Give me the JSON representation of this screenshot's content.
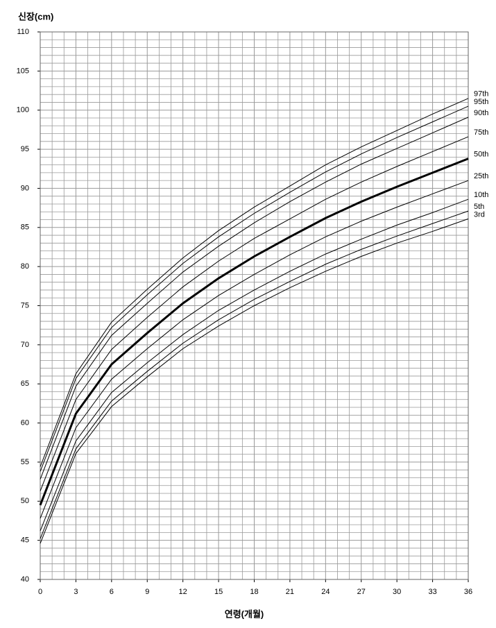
{
  "chart_data": {
    "type": "line",
    "title": "신장(cm)",
    "x_label": "연령(개월)",
    "x": [
      0,
      3,
      6,
      9,
      12,
      15,
      18,
      21,
      24,
      27,
      30,
      33,
      36
    ],
    "xlim": [
      0,
      36
    ],
    "xticks": [
      0,
      3,
      6,
      9,
      12,
      15,
      18,
      21,
      24,
      27,
      30,
      33,
      36
    ],
    "ylim": [
      40,
      110
    ],
    "yticks": [
      40,
      45,
      50,
      55,
      60,
      65,
      70,
      75,
      80,
      85,
      90,
      95,
      100,
      105,
      110
    ],
    "grid": true,
    "grid_color": "#999999",
    "series": [
      {
        "name": "97th",
        "color": "#000000",
        "linewidth": 1,
        "values": [
          54.4,
          66.3,
          72.9,
          77.1,
          81.1,
          84.6,
          87.6,
          90.3,
          93.0,
          95.3,
          97.4,
          99.5,
          101.5
        ]
      },
      {
        "name": "95th",
        "color": "#000000",
        "linewidth": 1,
        "values": [
          53.8,
          65.7,
          72.2,
          76.4,
          80.4,
          83.8,
          86.8,
          89.5,
          92.1,
          94.4,
          96.5,
          98.5,
          100.5
        ]
      },
      {
        "name": "90th",
        "color": "#000000",
        "linewidth": 1,
        "values": [
          52.8,
          64.7,
          71.2,
          75.3,
          79.3,
          82.6,
          85.6,
          88.3,
          90.8,
          93.1,
          95.1,
          97.1,
          99.1
        ]
      },
      {
        "name": "75th",
        "color": "#000000",
        "linewidth": 1,
        "values": [
          51.3,
          63.0,
          69.4,
          73.5,
          77.4,
          80.7,
          83.6,
          86.1,
          88.6,
          90.8,
          92.8,
          94.7,
          96.6
        ]
      },
      {
        "name": "50th",
        "color": "#000000",
        "linewidth": 3,
        "values": [
          49.5,
          61.2,
          67.5,
          71.5,
          75.3,
          78.5,
          81.3,
          83.8,
          86.2,
          88.3,
          90.2,
          92.0,
          93.8
        ]
      },
      {
        "name": "25th",
        "color": "#000000",
        "linewidth": 1,
        "values": [
          47.8,
          59.4,
          65.6,
          69.5,
          73.2,
          76.3,
          79.0,
          81.5,
          83.8,
          85.8,
          87.6,
          89.3,
          91.0
        ]
      },
      {
        "name": "10th",
        "color": "#000000",
        "linewidth": 1,
        "values": [
          46.2,
          57.7,
          63.9,
          67.7,
          71.3,
          74.4,
          77.0,
          79.4,
          81.6,
          83.5,
          85.3,
          86.9,
          88.6
        ]
      },
      {
        "name": "5th",
        "color": "#000000",
        "linewidth": 1,
        "values": [
          45.2,
          56.7,
          62.8,
          66.6,
          70.2,
          73.2,
          75.8,
          78.1,
          80.3,
          82.2,
          83.9,
          85.5,
          87.1
        ]
      },
      {
        "name": "3rd",
        "color": "#000000",
        "linewidth": 1,
        "values": [
          44.6,
          56.1,
          62.1,
          65.9,
          69.5,
          72.4,
          75.0,
          77.3,
          79.4,
          81.3,
          83.0,
          84.5,
          86.1
        ]
      }
    ]
  }
}
